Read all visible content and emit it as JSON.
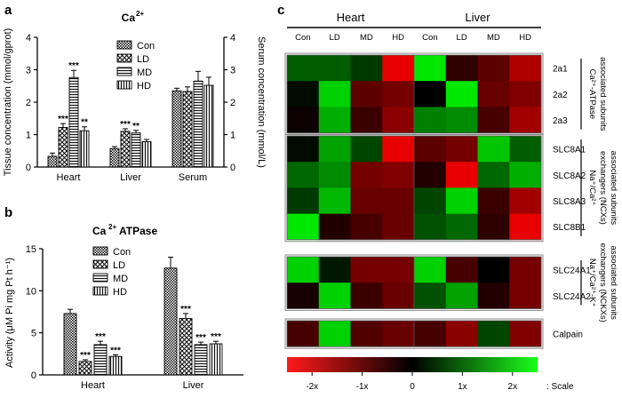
{
  "chart_data": [
    {
      "panel": "a",
      "type": "bar",
      "title": "Ca",
      "title_sup": "2+",
      "ylabel_left": "Tissue concentration (mmol/gprot)",
      "ylabel_right": "Serum concentration (mmol/L)",
      "ylim": [
        0,
        4
      ],
      "yticks": [
        "0",
        "1",
        "2",
        "3",
        "4"
      ],
      "categories": [
        "Heart",
        "Liver",
        "Serum"
      ],
      "series": [
        {
          "name": "Con",
          "values": [
            0.33,
            0.57,
            2.35
          ],
          "errors": [
            0.1,
            0.06,
            0.08
          ],
          "stars": [
            "",
            "",
            ""
          ]
        },
        {
          "name": "LD",
          "values": [
            1.22,
            1.1,
            2.33
          ],
          "errors": [
            0.12,
            0.08,
            0.14
          ],
          "stars": [
            "***",
            "***",
            ""
          ]
        },
        {
          "name": "MD",
          "values": [
            2.76,
            1.05,
            2.65
          ],
          "errors": [
            0.22,
            0.08,
            0.3
          ],
          "stars": [
            "***",
            "**",
            ""
          ]
        },
        {
          "name": "HD",
          "values": [
            1.12,
            0.78,
            2.52
          ],
          "errors": [
            0.12,
            0.07,
            0.25
          ],
          "stars": [
            "**",
            "",
            ""
          ]
        }
      ]
    },
    {
      "panel": "b",
      "type": "bar",
      "title": "Ca",
      "title_sup": "2+",
      "title_rest": "ATPase",
      "ylabel": "Activity (μM Pi mg Pt h⁻¹)",
      "ylim": [
        0,
        15
      ],
      "yticks": [
        "0",
        "5",
        "10",
        "15"
      ],
      "categories": [
        "Heart",
        "Liver"
      ],
      "series": [
        {
          "name": "Con",
          "values": [
            7.3,
            12.7
          ],
          "errors": [
            0.5,
            1.3
          ],
          "stars": [
            "",
            ""
          ]
        },
        {
          "name": "LD",
          "values": [
            1.6,
            6.7
          ],
          "errors": [
            0.2,
            0.6
          ],
          "stars": [
            "***",
            "***"
          ]
        },
        {
          "name": "MD",
          "values": [
            3.6,
            3.6
          ],
          "errors": [
            0.4,
            0.3
          ],
          "stars": [
            "***",
            "***"
          ]
        },
        {
          "name": "HD",
          "values": [
            2.2,
            3.7
          ],
          "errors": [
            0.2,
            0.3
          ],
          "stars": [
            "***",
            "***"
          ]
        }
      ]
    },
    {
      "panel": "c",
      "type": "heatmap",
      "tissues": [
        "Heart",
        "Liver"
      ],
      "columns": [
        "Con",
        "LD",
        "MD",
        "HD"
      ],
      "groups": [
        {
          "rows": [
            "2a1",
            "2a2",
            "2a3"
          ],
          "label": [
            "Ca²⁺-ATPase",
            "associated subunits"
          ]
        },
        {
          "rows": [
            "SLC8A1",
            "SLC8A2",
            "SLC8A3",
            "SLC8B1"
          ],
          "label": [
            "Na⁺/Ca²⁺",
            "exchangers (NCXs)",
            "associated subunits"
          ]
        },
        {
          "rows": [
            "SLC24A1",
            "SLC24A2"
          ],
          "label": [
            "Na⁺/Ca²⁺-K⁺",
            "exchangers (NCKXs)",
            "associated subunits"
          ]
        },
        {
          "rows": [
            "Calpain"
          ],
          "label": []
        }
      ],
      "values": {
        "Heart": [
          [
            0.8,
            0.8,
            0.5,
            -2.0
          ],
          [
            0.1,
            1.8,
            -0.8,
            -1.0
          ],
          [
            -0.1,
            1.5,
            -0.5,
            -1.2
          ],
          [
            0.1,
            1.4,
            0.6,
            -2.0
          ],
          [
            0.9,
            1.2,
            -1.0,
            -1.1
          ],
          [
            0.5,
            1.6,
            -0.9,
            -0.9
          ],
          [
            2.0,
            -0.3,
            -0.6,
            -0.9
          ],
          [
            1.8,
            0.2,
            -1.0,
            -1.0
          ],
          [
            -0.2,
            1.8,
            -0.5,
            -0.9
          ],
          [
            -0.6,
            1.8,
            -0.7,
            -0.9
          ]
        ],
        "Liver": [
          [
            2.0,
            -0.4,
            -0.8,
            -1.5
          ],
          [
            0.0,
            2.0,
            -0.9,
            -1.1
          ],
          [
            1.1,
            1.2,
            -0.6,
            -1.4
          ],
          [
            -0.8,
            -1.0,
            1.7,
            0.8
          ],
          [
            -0.3,
            -2.0,
            0.9,
            1.5
          ],
          [
            0.6,
            1.8,
            -0.5,
            -1.4
          ],
          [
            0.7,
            0.9,
            -0.4,
            -2.0
          ],
          [
            1.8,
            -0.6,
            0.0,
            -1.0
          ],
          [
            0.7,
            1.4,
            -0.3,
            -1.0
          ],
          [
            -0.6,
            -1.2,
            0.6,
            -1.1
          ]
        ]
      },
      "scale": {
        "ticks": [
          "-2x",
          "-1x",
          "0",
          "1x",
          "2x"
        ],
        "label": ": Scale",
        "range": [
          -2.5,
          2.5
        ]
      }
    }
  ],
  "panel_letters": [
    "a",
    "b",
    "c"
  ]
}
